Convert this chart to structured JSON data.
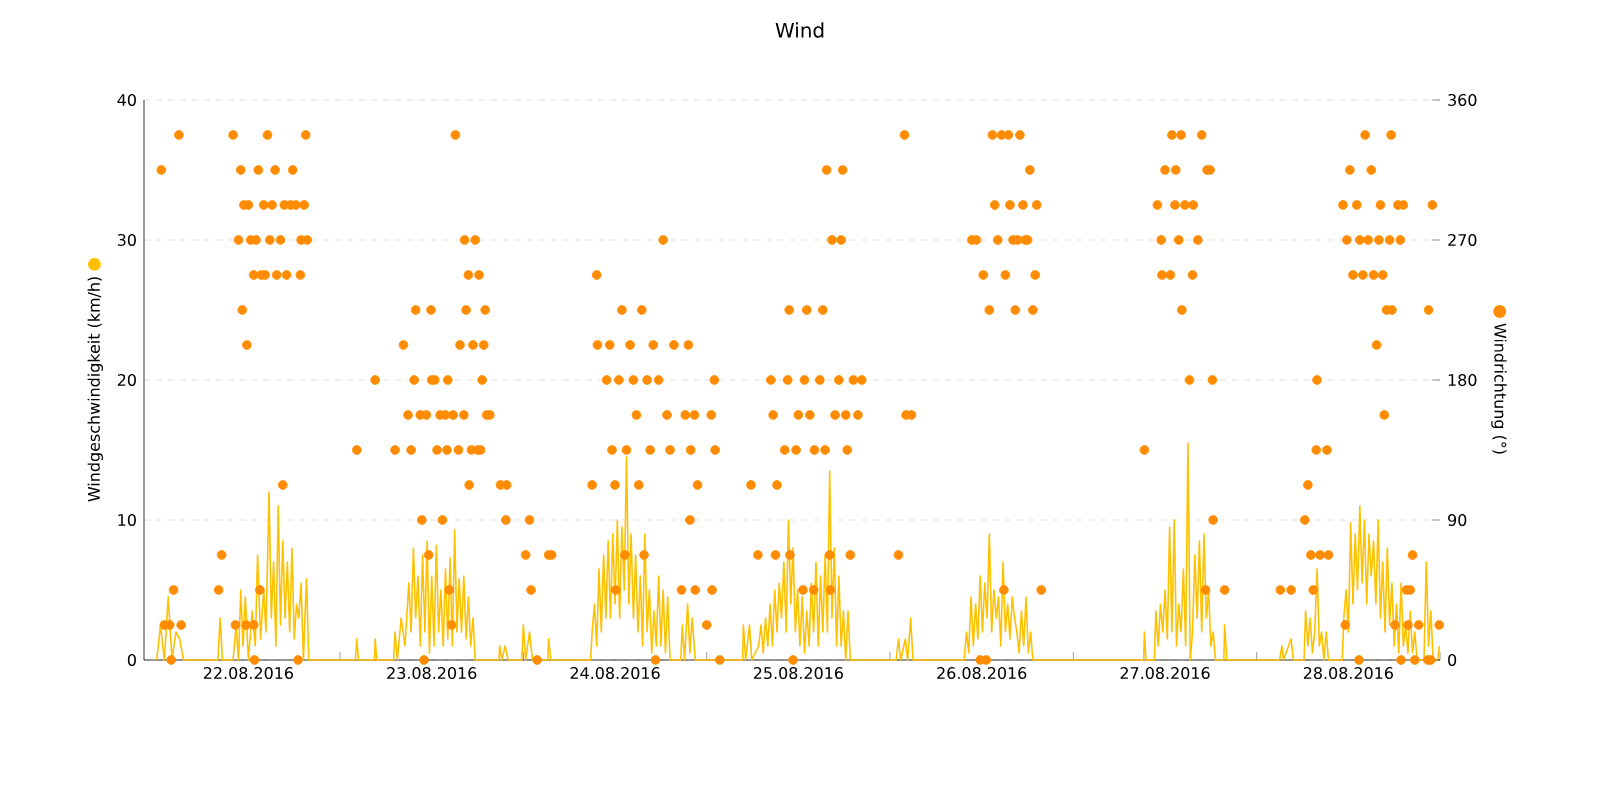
{
  "chart_data": {
    "type": "line",
    "title": "Wind",
    "ylabel": "Windgeschwindigkeit (km/h)",
    "y2label": "Windrichtung (°)",
    "xlim": [
      "2016-08-21T22:20",
      "2016-08-29T00:00"
    ],
    "xticks": [
      {
        "value": "2016-08-22T12:00",
        "label": "22.08.2016"
      },
      {
        "value": "2016-08-23T00:00",
        "label": null
      },
      {
        "value": "2016-08-23T12:00",
        "label": "23.08.2016"
      },
      {
        "value": "2016-08-24T00:00",
        "label": null
      },
      {
        "value": "2016-08-24T12:00",
        "label": "24.08.2016"
      },
      {
        "value": "2016-08-25T00:00",
        "label": null
      },
      {
        "value": "2016-08-25T12:00",
        "label": "25.08.2016"
      },
      {
        "value": "2016-08-26T00:00",
        "label": null
      },
      {
        "value": "2016-08-26T12:00",
        "label": "26.08.2016"
      },
      {
        "value": "2016-08-27T00:00",
        "label": null
      },
      {
        "value": "2016-08-27T12:00",
        "label": "27.08.2016"
      },
      {
        "value": "2016-08-28T00:00",
        "label": null
      },
      {
        "value": "2016-08-28T12:00",
        "label": "28.08.2016"
      },
      {
        "value": "2016-08-29T00:00",
        "label": null
      }
    ],
    "ylim": [
      0,
      40
    ],
    "yticks": [
      0,
      10,
      20,
      30,
      40
    ],
    "y2lim": [
      0,
      360
    ],
    "y2ticks": [
      0,
      90,
      180,
      270,
      360
    ],
    "grid": "y",
    "series": [
      {
        "color": "#ffc000",
        "marker": "none",
        "x": [
          "2016-08-22T00:00",
          "2016-08-22T00:30",
          "2016-08-22T01:00",
          "2016-08-22T01:30",
          "2016-08-22T02:00",
          "2016-08-22T02:30",
          "2016-08-22T03:00",
          "2016-08-22T03:30",
          "2016-08-22T08:00",
          "2016-08-22T08:18",
          "2016-08-22T08:36",
          "2016-08-22T10:00",
          "2016-08-22T10:24",
          "2016-08-22T10:42",
          "2016-08-22T11:00",
          "2016-08-22T11:18",
          "2016-08-22T11:36",
          "2016-08-22T12:00",
          "2016-08-22T12:30",
          "2016-08-22T12:54",
          "2016-08-22T13:12",
          "2016-08-22T13:36",
          "2016-08-22T14:00",
          "2016-08-22T14:18",
          "2016-08-22T14:42",
          "2016-08-22T15:00",
          "2016-08-22T15:18",
          "2016-08-22T15:36",
          "2016-08-22T15:54",
          "2016-08-22T16:12",
          "2016-08-22T16:30",
          "2016-08-22T16:48",
          "2016-08-22T17:06",
          "2016-08-22T17:24",
          "2016-08-22T17:42",
          "2016-08-22T18:00",
          "2016-08-22T18:18",
          "2016-08-22T18:36",
          "2016-08-22T18:54",
          "2016-08-22T19:12",
          "2016-08-22T19:36",
          "2016-08-22T19:54",
          "2016-08-23T02:00",
          "2016-08-23T02:12",
          "2016-08-23T02:24",
          "2016-08-23T04:30",
          "2016-08-23T04:36",
          "2016-08-23T04:48",
          "2016-08-23T07:00",
          "2016-08-23T07:12",
          "2016-08-23T07:30",
          "2016-08-23T08:00",
          "2016-08-23T08:30",
          "2016-08-23T09:00",
          "2016-08-23T09:18",
          "2016-08-23T09:36",
          "2016-08-23T09:54",
          "2016-08-23T10:12",
          "2016-08-23T10:30",
          "2016-08-23T10:48",
          "2016-08-23T11:06",
          "2016-08-23T11:24",
          "2016-08-23T11:42",
          "2016-08-23T12:00",
          "2016-08-23T12:18",
          "2016-08-23T12:36",
          "2016-08-23T12:54",
          "2016-08-23T13:12",
          "2016-08-23T13:30",
          "2016-08-23T13:48",
          "2016-08-23T14:06",
          "2016-08-23T14:24",
          "2016-08-23T14:42",
          "2016-08-23T15:00",
          "2016-08-23T15:18",
          "2016-08-23T15:36",
          "2016-08-23T15:54",
          "2016-08-23T16:12",
          "2016-08-23T16:30",
          "2016-08-23T16:48",
          "2016-08-23T17:06",
          "2016-08-23T17:24",
          "2016-08-23T17:42",
          "2016-08-23T20:48",
          "2016-08-23T20:54",
          "2016-08-23T21:12",
          "2016-08-23T21:36",
          "2016-08-23T22:00",
          "2016-08-23T23:48",
          "2016-08-24T00:00",
          "2016-08-24T00:18",
          "2016-08-24T00:48",
          "2016-08-24T01:12",
          "2016-08-24T03:12",
          "2016-08-24T03:18",
          "2016-08-24T03:36",
          "2016-08-24T08:48",
          "2016-08-24T09:00",
          "2016-08-24T09:18",
          "2016-08-24T09:36",
          "2016-08-24T09:54",
          "2016-08-24T10:12",
          "2016-08-24T10:30",
          "2016-08-24T10:48",
          "2016-08-24T11:06",
          "2016-08-24T11:24",
          "2016-08-24T11:42",
          "2016-08-24T12:00",
          "2016-08-24T12:18",
          "2016-08-24T12:36",
          "2016-08-24T12:54",
          "2016-08-24T13:12",
          "2016-08-24T13:30",
          "2016-08-24T13:48",
          "2016-08-24T14:06",
          "2016-08-24T14:24",
          "2016-08-24T14:42",
          "2016-08-24T15:00",
          "2016-08-24T15:18",
          "2016-08-24T15:36",
          "2016-08-24T15:54",
          "2016-08-24T16:12",
          "2016-08-24T16:30",
          "2016-08-24T16:48",
          "2016-08-24T17:06",
          "2016-08-24T17:24",
          "2016-08-24T17:42",
          "2016-08-24T18:00",
          "2016-08-24T18:18",
          "2016-08-24T18:36",
          "2016-08-24T18:54",
          "2016-08-24T19:12",
          "2016-08-24T20:36",
          "2016-08-24T20:48",
          "2016-08-24T21:06",
          "2016-08-24T21:30",
          "2016-08-24T21:48",
          "2016-08-24T22:06",
          "2016-08-24T22:30",
          "2016-08-25T04:42",
          "2016-08-25T04:48",
          "2016-08-25T05:06",
          "2016-08-25T05:36",
          "2016-08-25T05:54",
          "2016-08-25T06:48",
          "2016-08-25T07:06",
          "2016-08-25T07:24",
          "2016-08-25T07:42",
          "2016-08-25T08:00",
          "2016-08-25T08:18",
          "2016-08-25T08:36",
          "2016-08-25T08:54",
          "2016-08-25T09:12",
          "2016-08-25T09:30",
          "2016-08-25T09:48",
          "2016-08-25T10:06",
          "2016-08-25T10:24",
          "2016-08-25T10:42",
          "2016-08-25T11:00",
          "2016-08-25T11:18",
          "2016-08-25T11:36",
          "2016-08-25T11:54",
          "2016-08-25T12:12",
          "2016-08-25T12:30",
          "2016-08-25T12:48",
          "2016-08-25T13:06",
          "2016-08-25T13:24",
          "2016-08-25T13:42",
          "2016-08-25T14:00",
          "2016-08-25T14:18",
          "2016-08-25T14:36",
          "2016-08-25T14:54",
          "2016-08-25T15:12",
          "2016-08-25T15:30",
          "2016-08-25T15:48",
          "2016-08-25T16:06",
          "2016-08-25T16:24",
          "2016-08-25T16:42",
          "2016-08-25T17:00",
          "2016-08-25T17:18",
          "2016-08-25T17:36",
          "2016-08-25T17:54",
          "2016-08-25T18:12",
          "2016-08-25T18:30",
          "2016-08-25T18:48",
          "2016-08-26T00:48",
          "2016-08-26T01:06",
          "2016-08-26T01:24",
          "2016-08-26T02:00",
          "2016-08-26T02:18",
          "2016-08-26T02:42",
          "2016-08-26T03:00",
          "2016-08-26T09:42",
          "2016-08-26T10:00",
          "2016-08-26T10:18",
          "2016-08-26T10:36",
          "2016-08-26T10:54",
          "2016-08-26T11:12",
          "2016-08-26T11:30",
          "2016-08-26T11:48",
          "2016-08-26T12:06",
          "2016-08-26T12:24",
          "2016-08-26T12:42",
          "2016-08-26T13:00",
          "2016-08-26T13:18",
          "2016-08-26T13:36",
          "2016-08-26T13:54",
          "2016-08-26T14:12",
          "2016-08-26T14:30",
          "2016-08-26T14:48",
          "2016-08-26T15:06",
          "2016-08-26T15:24",
          "2016-08-26T15:42",
          "2016-08-26T16:00",
          "2016-08-26T16:18",
          "2016-08-26T16:36",
          "2016-08-26T16:54",
          "2016-08-26T17:12",
          "2016-08-26T17:30",
          "2016-08-26T17:48",
          "2016-08-26T18:06",
          "2016-08-26T18:24",
          "2016-08-26T18:42",
          "2016-08-27T09:12",
          "2016-08-27T09:18",
          "2016-08-27T09:30",
          "2016-08-27T10:36",
          "2016-08-27T10:48",
          "2016-08-27T11:06",
          "2016-08-27T11:24",
          "2016-08-27T11:42",
          "2016-08-27T12:00",
          "2016-08-27T12:18",
          "2016-08-27T12:36",
          "2016-08-27T12:54",
          "2016-08-27T13:12",
          "2016-08-27T13:30",
          "2016-08-27T13:48",
          "2016-08-27T14:06",
          "2016-08-27T14:24",
          "2016-08-27T14:42",
          "2016-08-27T15:00",
          "2016-08-27T15:18",
          "2016-08-27T15:36",
          "2016-08-27T15:54",
          "2016-08-27T16:12",
          "2016-08-27T16:30",
          "2016-08-27T16:48",
          "2016-08-27T17:06",
          "2016-08-27T17:24",
          "2016-08-27T17:42",
          "2016-08-27T18:00",
          "2016-08-27T18:18",
          "2016-08-27T18:36",
          "2016-08-27T19:42",
          "2016-08-27T19:48",
          "2016-08-27T20:06",
          "2016-08-28T03:00",
          "2016-08-28T03:18",
          "2016-08-28T03:30",
          "2016-08-28T04:30",
          "2016-08-28T04:48",
          "2016-08-28T06:12",
          "2016-08-28T06:24",
          "2016-08-28T06:42",
          "2016-08-28T07:00",
          "2016-08-28T07:18",
          "2016-08-28T07:36",
          "2016-08-28T07:54",
          "2016-08-28T08:12",
          "2016-08-28T08:30",
          "2016-08-28T08:48",
          "2016-08-28T09:06",
          "2016-08-28T09:24",
          "2016-08-28T11:12",
          "2016-08-28T11:24",
          "2016-08-28T11:42",
          "2016-08-28T12:00",
          "2016-08-28T12:18",
          "2016-08-28T12:36",
          "2016-08-28T12:54",
          "2016-08-28T13:12",
          "2016-08-28T13:30",
          "2016-08-28T13:48",
          "2016-08-28T14:06",
          "2016-08-28T14:24",
          "2016-08-28T14:42",
          "2016-08-28T15:00",
          "2016-08-28T15:18",
          "2016-08-28T15:36",
          "2016-08-28T15:54",
          "2016-08-28T16:12",
          "2016-08-28T16:30",
          "2016-08-28T16:48",
          "2016-08-28T17:06",
          "2016-08-28T17:24",
          "2016-08-28T17:42",
          "2016-08-28T18:00",
          "2016-08-28T18:18",
          "2016-08-28T18:36",
          "2016-08-28T18:54",
          "2016-08-28T19:12",
          "2016-08-28T19:30",
          "2016-08-28T19:48",
          "2016-08-28T20:06",
          "2016-08-28T20:24",
          "2016-08-28T20:42",
          "2016-08-28T21:00",
          "2016-08-28T21:54",
          "2016-08-28T22:12",
          "2016-08-28T22:30",
          "2016-08-28T22:48",
          "2016-08-28T23:06",
          "2016-08-28T23:42",
          "2016-08-28T23:54"
        ],
        "values": [
          0,
          2.5,
          0,
          4.5,
          0,
          2,
          1.5,
          0,
          0,
          3,
          0,
          0,
          2.5,
          0,
          5,
          1,
          4.5,
          0,
          3.5,
          1,
          7.5,
          1.5,
          5,
          2,
          12,
          3,
          7,
          1,
          11,
          2.5,
          8.5,
          3,
          7,
          2,
          8,
          1.5,
          4,
          3,
          5.5,
          0,
          5.8,
          0,
          0,
          1.5,
          0,
          0,
          1.5,
          0,
          0,
          2,
          0,
          3,
          1,
          5.5,
          2,
          8,
          3,
          6,
          1,
          7.5,
          2,
          8.5,
          0.5,
          6,
          1,
          8.2,
          2,
          5,
          1,
          6.5,
          1.5,
          7.3,
          1,
          9.3,
          2,
          5.8,
          2,
          6,
          1.5,
          4.5,
          1,
          3,
          0,
          0,
          1,
          0,
          1,
          0,
          0,
          2.5,
          0,
          2,
          0,
          0,
          1.5,
          0,
          0,
          2,
          4,
          1,
          6.5,
          2,
          7.5,
          3,
          8.5,
          3,
          9,
          4,
          10,
          3,
          9.5,
          5,
          14.5,
          4,
          9,
          3,
          7.5,
          2,
          6,
          1,
          9,
          2,
          5,
          0.5,
          3.5,
          1,
          6,
          1,
          5,
          0.5,
          4.5,
          0,
          0,
          2.5,
          0,
          4,
          0.5,
          3,
          0,
          0,
          2.5,
          0,
          2.5,
          0,
          1,
          2.5,
          0.5,
          3,
          1,
          4,
          1,
          5,
          2,
          5.5,
          3,
          7,
          2,
          10,
          4,
          8,
          2,
          5,
          1,
          4.5,
          0.5,
          3.5,
          1,
          5.5,
          2,
          7,
          1,
          6,
          2,
          7.5,
          2,
          13.5,
          3,
          8,
          1,
          6,
          1,
          3.5,
          0,
          3.5,
          0,
          0,
          1.5,
          0,
          1.5,
          0,
          3,
          0,
          0,
          2,
          0.5,
          4.5,
          1,
          4,
          1.5,
          6,
          2,
          5.5,
          3,
          9,
          2,
          5,
          3,
          4.5,
          1,
          7,
          2,
          4,
          1.5,
          4.5,
          3,
          2,
          0.5,
          3.5,
          1,
          4.5,
          0.5,
          2,
          0,
          0,
          2,
          0,
          0,
          3.5,
          1,
          4,
          2,
          5,
          1.5,
          9.5,
          2,
          10,
          1,
          4,
          2,
          6.5,
          1,
          15.5,
          0,
          2,
          7.5,
          3,
          8.5,
          2,
          9,
          3,
          5,
          1,
          2,
          0,
          0,
          2.5,
          0,
          0,
          1,
          0,
          1.5,
          0,
          0,
          3.5,
          1,
          3,
          0.5,
          2,
          6.5,
          1,
          2,
          0,
          2,
          0,
          0,
          3,
          5,
          2,
          9.8,
          4,
          9,
          5,
          11,
          5.5,
          10,
          4,
          9,
          6,
          8.5,
          4,
          10,
          3,
          7,
          2,
          8,
          2.5,
          5.5,
          1,
          4,
          0.5,
          5.5,
          1,
          2.5,
          0.5,
          3.5,
          0.5,
          2,
          0,
          0,
          7,
          1,
          3.5,
          0,
          0,
          1
        ]
      },
      {
        "type": "scatter",
        "axis": "y2",
        "color": "#ff8c00",
        "marker": "circle",
        "x": [
          "2016-08-22T00:36",
          "2016-08-22T01:00",
          "2016-08-22T01:42",
          "2016-08-22T01:54",
          "2016-08-22T02:12",
          "2016-08-22T02:54",
          "2016-08-22T03:12",
          "2016-08-22T08:06",
          "2016-08-22T08:30",
          "2016-08-22T10:00",
          "2016-08-22T10:18",
          "2016-08-22T10:42",
          "2016-08-22T11:00",
          "2016-08-22T11:12",
          "2016-08-22T11:24",
          "2016-08-22T11:42",
          "2016-08-22T11:48",
          "2016-08-22T12:00",
          "2016-08-22T12:18",
          "2016-08-22T12:42",
          "2016-08-22T12:42",
          "2016-08-22T12:48",
          "2016-08-22T13:00",
          "2016-08-22T13:18",
          "2016-08-22T13:30",
          "2016-08-22T13:42",
          "2016-08-22T14:00",
          "2016-08-22T14:12",
          "2016-08-22T14:30",
          "2016-08-22T14:48",
          "2016-08-22T15:06",
          "2016-08-22T15:30",
          "2016-08-22T15:42",
          "2016-08-22T16:12",
          "2016-08-22T16:30",
          "2016-08-22T16:42",
          "2016-08-22T17:00",
          "2016-08-22T17:30",
          "2016-08-22T17:48",
          "2016-08-22T18:12",
          "2016-08-22T18:30",
          "2016-08-22T18:48",
          "2016-08-22T18:54",
          "2016-08-22T19:18",
          "2016-08-22T19:30",
          "2016-08-22T19:42",
          "2016-08-23T02:12",
          "2016-08-23T04:36",
          "2016-08-23T07:12",
          "2016-08-23T08:18",
          "2016-08-23T08:54",
          "2016-08-23T09:18",
          "2016-08-23T09:42",
          "2016-08-23T09:54",
          "2016-08-23T10:30",
          "2016-08-23T10:42",
          "2016-08-23T11:00",
          "2016-08-23T11:18",
          "2016-08-23T11:36",
          "2016-08-23T11:54",
          "2016-08-23T12:00",
          "2016-08-23T12:24",
          "2016-08-23T12:42",
          "2016-08-23T13:06",
          "2016-08-23T13:24",
          "2016-08-23T13:48",
          "2016-08-23T14:00",
          "2016-08-23T14:06",
          "2016-08-23T14:18",
          "2016-08-23T14:36",
          "2016-08-23T14:48",
          "2016-08-23T15:06",
          "2016-08-23T15:30",
          "2016-08-23T15:42",
          "2016-08-23T16:12",
          "2016-08-23T16:18",
          "2016-08-23T16:30",
          "2016-08-23T16:48",
          "2016-08-23T16:54",
          "2016-08-23T17:12",
          "2016-08-23T17:24",
          "2016-08-23T17:42",
          "2016-08-23T18:00",
          "2016-08-23T18:12",
          "2016-08-23T18:24",
          "2016-08-23T18:36",
          "2016-08-23T18:48",
          "2016-08-23T19:00",
          "2016-08-23T19:12",
          "2016-08-23T19:36",
          "2016-08-23T21:00",
          "2016-08-23T21:42",
          "2016-08-23T21:48",
          "2016-08-24T00:18",
          "2016-08-24T00:48",
          "2016-08-24T01:00",
          "2016-08-24T01:48",
          "2016-08-24T03:18",
          "2016-08-24T03:42",
          "2016-08-24T09:00",
          "2016-08-24T09:36",
          "2016-08-24T09:42",
          "2016-08-24T10:54",
          "2016-08-24T11:18",
          "2016-08-24T11:36",
          "2016-08-24T12:00",
          "2016-08-24T12:06",
          "2016-08-24T12:30",
          "2016-08-24T12:54",
          "2016-08-24T13:18",
          "2016-08-24T13:30",
          "2016-08-24T13:58",
          "2016-08-24T14:24",
          "2016-08-24T14:48",
          "2016-08-24T15:06",
          "2016-08-24T15:30",
          "2016-08-24T15:48",
          "2016-08-24T16:12",
          "2016-08-24T16:36",
          "2016-08-24T17:00",
          "2016-08-24T17:18",
          "2016-08-24T17:42",
          "2016-08-24T18:18",
          "2016-08-24T18:48",
          "2016-08-24T19:12",
          "2016-08-24T19:42",
          "2016-08-24T20:42",
          "2016-08-24T21:12",
          "2016-08-24T21:36",
          "2016-08-24T21:48",
          "2016-08-24T21:54",
          "2016-08-24T22:24",
          "2016-08-24T22:30",
          "2016-08-24T22:48",
          "2016-08-25T00:00",
          "2016-08-25T00:36",
          "2016-08-25T00:42",
          "2016-08-25T01:00",
          "2016-08-25T01:06",
          "2016-08-25T01:42",
          "2016-08-25T05:48",
          "2016-08-25T06:42",
          "2016-08-25T08:24",
          "2016-08-25T08:42",
          "2016-08-25T09:00",
          "2016-08-25T09:12",
          "2016-08-25T10:12",
          "2016-08-25T10:36",
          "2016-08-25T10:48",
          "2016-08-25T10:54",
          "2016-08-25T11:18",
          "2016-08-25T11:42",
          "2016-08-25T12:00",
          "2016-08-25T12:36",
          "2016-08-25T12:48",
          "2016-08-25T13:06",
          "2016-08-25T13:30",
          "2016-08-25T14:00",
          "2016-08-25T14:06",
          "2016-08-25T14:48",
          "2016-08-25T15:12",
          "2016-08-25T15:30",
          "2016-08-25T15:42",
          "2016-08-25T16:06",
          "2016-08-25T16:12",
          "2016-08-25T16:24",
          "2016-08-25T16:48",
          "2016-08-25T17:18",
          "2016-08-25T17:36",
          "2016-08-25T17:48",
          "2016-08-25T18:12",
          "2016-08-25T18:24",
          "2016-08-25T18:48",
          "2016-08-25T19:12",
          "2016-08-25T19:48",
          "2016-08-25T20:18",
          "2016-08-26T01:06",
          "2016-08-26T01:54",
          "2016-08-26T02:06",
          "2016-08-26T02:48",
          "2016-08-26T10:42",
          "2016-08-26T11:18",
          "2016-08-26T11:48",
          "2016-08-26T12:12",
          "2016-08-26T12:36",
          "2016-08-26T13:00",
          "2016-08-26T13:24",
          "2016-08-26T13:42",
          "2016-08-26T14:06",
          "2016-08-26T14:36",
          "2016-08-26T14:54",
          "2016-08-26T15:06",
          "2016-08-26T15:30",
          "2016-08-26T15:42",
          "2016-08-26T16:06",
          "2016-08-26T16:24",
          "2016-08-26T16:42",
          "2016-08-26T17:00",
          "2016-08-26T17:24",
          "2016-08-26T17:42",
          "2016-08-26T18:00",
          "2016-08-26T18:18",
          "2016-08-26T18:42",
          "2016-08-26T19:00",
          "2016-08-26T19:12",
          "2016-08-26T19:48",
          "2016-08-27T09:18",
          "2016-08-27T11:00",
          "2016-08-27T11:30",
          "2016-08-27T11:36",
          "2016-08-27T12:00",
          "2016-08-27T12:42",
          "2016-08-27T12:54",
          "2016-08-27T13:18",
          "2016-08-27T13:24",
          "2016-08-27T13:48",
          "2016-08-27T14:06",
          "2016-08-27T14:12",
          "2016-08-27T14:36",
          "2016-08-27T15:12",
          "2016-08-27T15:36",
          "2016-08-27T15:42",
          "2016-08-27T16:18",
          "2016-08-27T16:48",
          "2016-08-27T17:18",
          "2016-08-27T17:30",
          "2016-08-27T17:54",
          "2016-08-27T18:12",
          "2016-08-27T18:18",
          "2016-08-27T19:48",
          "2016-08-28T03:06",
          "2016-08-28T04:30",
          "2016-08-28T06:18",
          "2016-08-28T06:42",
          "2016-08-28T07:06",
          "2016-08-28T07:24",
          "2016-08-28T07:48",
          "2016-08-28T07:54",
          "2016-08-28T08:18",
          "2016-08-28T09:12",
          "2016-08-28T09:24",
          "2016-08-28T11:18",
          "2016-08-28T11:36",
          "2016-08-28T11:48",
          "2016-08-28T12:12",
          "2016-08-28T12:36",
          "2016-08-28T13:06",
          "2016-08-28T13:24",
          "2016-08-28T13:30",
          "2016-08-28T13:54",
          "2016-08-28T14:12",
          "2016-08-28T14:36",
          "2016-08-28T15:00",
          "2016-08-28T15:18",
          "2016-08-28T15:42",
          "2016-08-28T16:00",
          "2016-08-28T16:12",
          "2016-08-28T16:30",
          "2016-08-28T16:42",
          "2016-08-28T17:00",
          "2016-08-28T17:24",
          "2016-08-28T17:36",
          "2016-08-28T17:42",
          "2016-08-28T18:06",
          "2016-08-28T18:30",
          "2016-08-28T18:48",
          "2016-08-28T18:54",
          "2016-08-28T19:12",
          "2016-08-28T19:36",
          "2016-08-28T19:48",
          "2016-08-28T20:06",
          "2016-08-28T20:24",
          "2016-08-28T20:42",
          "2016-08-28T21:12",
          "2016-08-28T22:24",
          "2016-08-28T22:30",
          "2016-08-28T22:48",
          "2016-08-28T23:00",
          "2016-08-28T23:54"
        ],
        "values": [
          315,
          22.5,
          22.5,
          0,
          45,
          337.5,
          22.5,
          45,
          67.5,
          337.5,
          22.5,
          270,
          315,
          225,
          292.5,
          22.5,
          202.5,
          292.5,
          270,
          247.5,
          22.5,
          0,
          270,
          315,
          45,
          247.5,
          292.5,
          247.5,
          337.5,
          270,
          292.5,
          315,
          247.5,
          270,
          112.5,
          292.5,
          247.5,
          292.5,
          315,
          292.5,
          0,
          247.5,
          270,
          292.5,
          337.5,
          270,
          135,
          180,
          135,
          202.5,
          157.5,
          135,
          180,
          225,
          157.5,
          90,
          0,
          157.5,
          67.5,
          225,
          180,
          180,
          135,
          157.5,
          90,
          157.5,
          135,
          180,
          45,
          22.5,
          157.5,
          337.5,
          135,
          202.5,
          157.5,
          270,
          225,
          247.5,
          112.5,
          135,
          202.5,
          270,
          135,
          247.5,
          135,
          180,
          202.5,
          225,
          157.5,
          157.5,
          112.5,
          90,
          112.5,
          67.5,
          90,
          45,
          0,
          67.5,
          67.5,
          112.5,
          247.5,
          202.5,
          180,
          202.5,
          135,
          112.5,
          45,
          180,
          225,
          67.5,
          135,
          202.5,
          180,
          157.5,
          112.5,
          225,
          67.5,
          180,
          135,
          202.5,
          0,
          180,
          270,
          157.5,
          135,
          202.5,
          45,
          157.5,
          202.5,
          90,
          135,
          157.5,
          45,
          112.5,
          22.5,
          157.5,
          45,
          180,
          135,
          0,
          112.5,
          67.5,
          180,
          157.5,
          67.5,
          112.5,
          135,
          180,
          225,
          67.5,
          0,
          135,
          157.5,
          45,
          180,
          225,
          157.5,
          45,
          135,
          180,
          225,
          135,
          315,
          67.5,
          45,
          270,
          157.5,
          180,
          270,
          315,
          157.5,
          135,
          67.5,
          180,
          157.5,
          180,
          67.5,
          337.5,
          157.5,
          157.5,
          270,
          270,
          0,
          247.5,
          0,
          225,
          337.5,
          292.5,
          270,
          337.5,
          45,
          247.5,
          337.5,
          292.5,
          270,
          225,
          270,
          337.5,
          292.5,
          270,
          270,
          315,
          225,
          247.5,
          292.5,
          45,
          135,
          292.5,
          270,
          247.5,
          315,
          247.5,
          337.5,
          292.5,
          315,
          270,
          337.5,
          225,
          292.5,
          180,
          247.5,
          292.5,
          270,
          337.5,
          45,
          315,
          315,
          180,
          90,
          45,
          45,
          45,
          90,
          112.5,
          67.5,
          45,
          135,
          180,
          67.5,
          135,
          67.5,
          292.5,
          22.5,
          270,
          315,
          247.5,
          292.5,
          0,
          270,
          247.5,
          337.5,
          270,
          315,
          247.5,
          202.5,
          270,
          292.5,
          247.5,
          157.5,
          225,
          270,
          337.5,
          225,
          22.5,
          292.5,
          270,
          0,
          292.5,
          45,
          22.5,
          45,
          67.5,
          0,
          22.5,
          0,
          225,
          0,
          292.5,
          22.5
        ]
      }
    ]
  }
}
